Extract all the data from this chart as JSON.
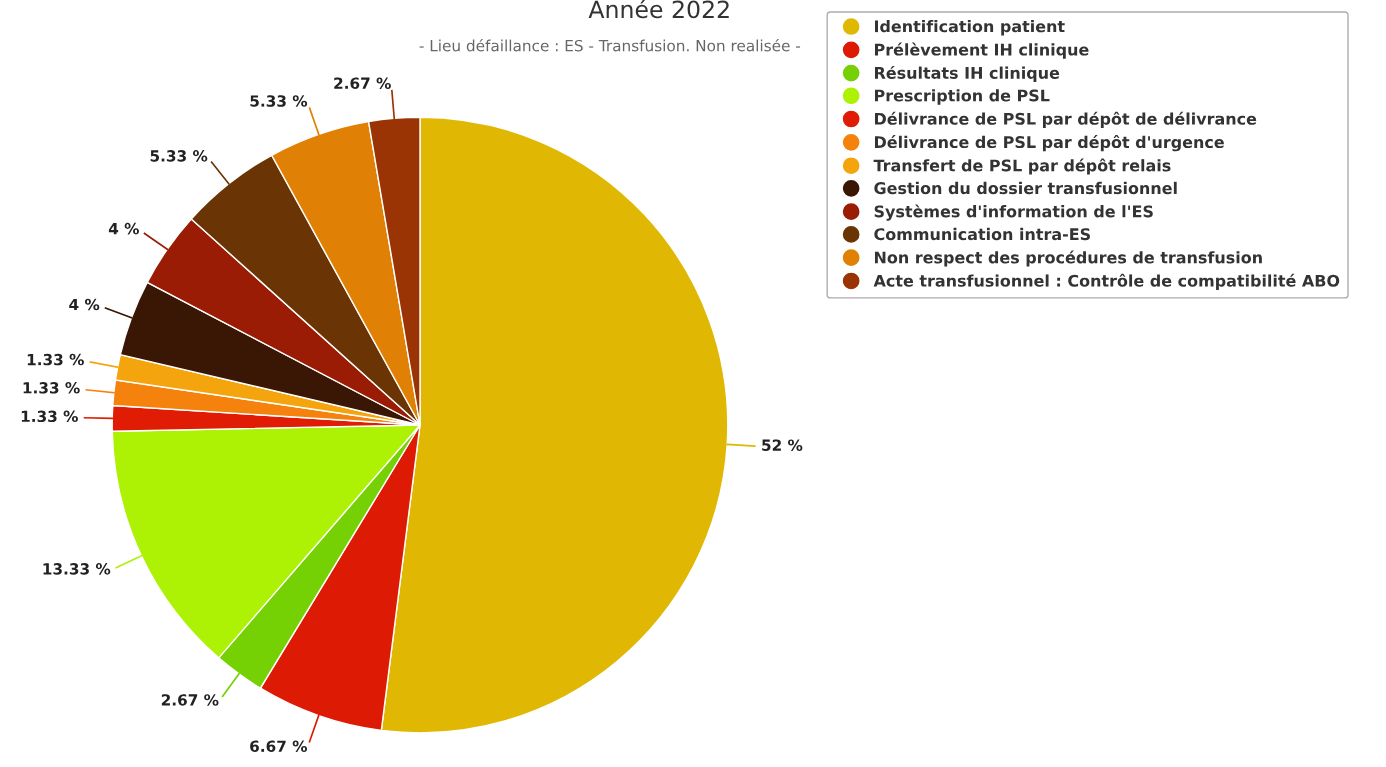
{
  "chart_data": {
    "type": "pie",
    "title": "Année 2022",
    "subtitle": "- Lieu défaillance : ES - Transfusion. Non realisée -",
    "categories": [
      "Identification patient",
      "Prélèvement IH clinique",
      "Résultats IH clinique",
      "Prescription de PSL",
      "Délivrance de PSL par dépôt de délivrance",
      "Délivrance de PSL par dépôt d'urgence",
      "Transfert de PSL par dépôt relais",
      "Gestion du dossier transfusionnel",
      "Systèmes d'information de l'ES",
      "Communication intra-ES",
      "Non respect des procédures de transfusion",
      "Acte transfusionnel : Contrôle de compatibilité ABO"
    ],
    "values": [
      52,
      6.67,
      2.67,
      13.33,
      1.33,
      1.33,
      1.33,
      4,
      4,
      5.33,
      5.33,
      2.67
    ],
    "value_labels": [
      "52 %",
      "6.67 %",
      "2.67 %",
      "13.33 %",
      "1.33 %",
      "1.33 %",
      "1.33 %",
      "4 %",
      "4 %",
      "5.33 %",
      "5.33 %",
      "2.67 %"
    ],
    "colors": [
      "#e0b804",
      "#dd1a04",
      "#76d104",
      "#adf104",
      "#e01c04",
      "#f4820c",
      "#f4a40c",
      "#3a1604",
      "#9a1c04",
      "#6a3404",
      "#e08004",
      "#9a3404"
    ],
    "legend": "top right"
  }
}
